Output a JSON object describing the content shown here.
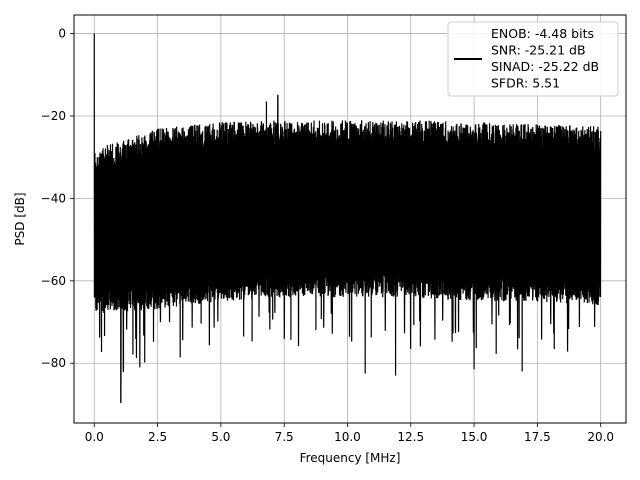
{
  "chart_data": {
    "type": "line",
    "title": "",
    "xlabel": "Frequency [MHz]",
    "ylabel": "PSD [dB]",
    "xlim": [
      -0.8,
      21.0
    ],
    "ylim": [
      -94.5,
      4.5
    ],
    "x_ticks": [
      0.0,
      2.5,
      5.0,
      7.5,
      10.0,
      12.5,
      15.0,
      17.5,
      20.0
    ],
    "x_tick_labels": [
      "0.0",
      "2.5",
      "5.0",
      "7.5",
      "10.0",
      "12.5",
      "15.0",
      "17.5",
      "20.0"
    ],
    "y_ticks": [
      0,
      -20,
      -40,
      -60,
      -80
    ],
    "y_tick_labels": [
      "0",
      "−20",
      "−40",
      "−60",
      "−80"
    ],
    "grid": true,
    "legend_position": "top-right",
    "series": [
      {
        "color": "#000000",
        "x_range": [
          0.0,
          20.0
        ],
        "noise_ceiling_db": [
          -28,
          -23,
          -21.5,
          -21,
          -21,
          -21,
          -21.5,
          -22,
          -22.5
        ],
        "noise_floor_db": [
          -68,
          -67,
          -65,
          -64,
          -64,
          -64,
          -65,
          -65,
          -66
        ],
        "peaks": [
          {
            "x": 0.0,
            "y": 0.0
          },
          {
            "x": 6.8,
            "y": -16.5
          },
          {
            "x": 7.25,
            "y": -15.0
          },
          {
            "x": 1.05,
            "y": -89.5
          },
          {
            "x": 1.15,
            "y": -82.0
          },
          {
            "x": 1.8,
            "y": -81.0
          },
          {
            "x": 10.7,
            "y": -82.5
          },
          {
            "x": 11.9,
            "y": -83.0
          },
          {
            "x": 15.0,
            "y": -81.5
          },
          {
            "x": 16.9,
            "y": -82.0
          }
        ],
        "legend_lines": [
          "ENOB: -4.48 bits",
          "SNR: -25.21 dB",
          "SINAD: -25.22 dB",
          "SFDR: 5.51"
        ]
      }
    ]
  }
}
